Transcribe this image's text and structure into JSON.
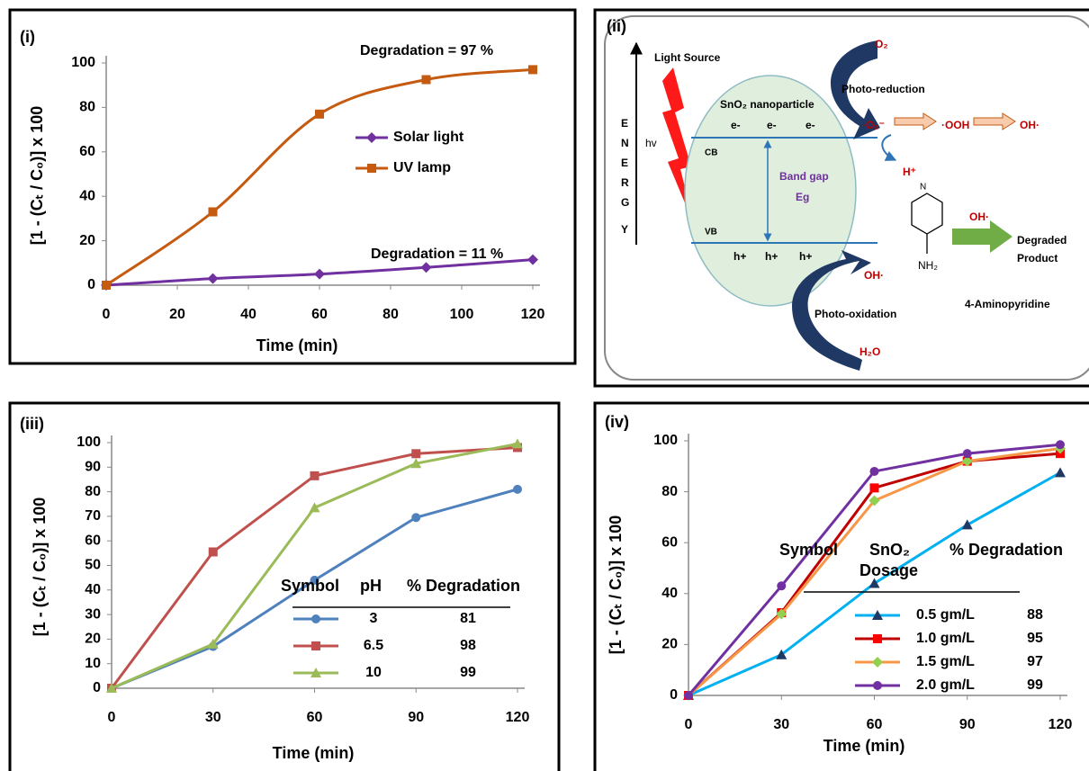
{
  "chart_data": [
    {
      "type": "line",
      "label": "(i)",
      "smooth": true,
      "x_label": "Time (min)",
      "y_label": "[1 - (Cₜ / C₀)] x 100",
      "x": [
        0,
        30,
        60,
        90,
        120
      ],
      "xlim": [
        0,
        120
      ],
      "xticks": [
        0,
        20,
        40,
        60,
        80,
        100,
        120
      ],
      "ylim": [
        0,
        100
      ],
      "yticks": [
        0,
        20,
        40,
        60,
        80,
        100
      ],
      "grid": false,
      "series": [
        {
          "name": "Solar light",
          "color": "#7030a0",
          "marker": "diamond",
          "marker_color": "#7030a0",
          "values": [
            0,
            3,
            5,
            8,
            11.5
          ]
        },
        {
          "name": "UV lamp",
          "color": "#c55a11",
          "marker": "square",
          "marker_color": "#c55a11",
          "values": [
            0,
            33,
            77,
            92.5,
            97
          ]
        }
      ],
      "annotations": [
        "Degradation = 97 %",
        "Degradation = 11 %"
      ]
    },
    {
      "type": "line",
      "label": "(iii)",
      "smooth": false,
      "x_label": "Time (min)",
      "y_label": "[1 - (Cₜ / C₀)] x 100",
      "x": [
        0,
        30,
        60,
        90,
        120
      ],
      "xlim": [
        0,
        120
      ],
      "xticks": [
        0,
        30,
        60,
        90,
        120
      ],
      "ylim": [
        0,
        100
      ],
      "yticks": [
        0,
        10,
        20,
        30,
        40,
        50,
        60,
        70,
        80,
        90,
        100
      ],
      "grid": false,
      "legend_header": [
        "Symbol",
        "pH",
        "% Degradation"
      ],
      "series": [
        {
          "name": "3",
          "degradation": 81,
          "color": "#4f81bd",
          "marker": "circle",
          "marker_color": "#4f81bd",
          "values": [
            0,
            17,
            44,
            69.5,
            81
          ]
        },
        {
          "name": "6.5",
          "degradation": 98,
          "color": "#c0504d",
          "marker": "square",
          "marker_color": "#c0504d",
          "values": [
            0,
            55.5,
            86.5,
            95.5,
            98
          ]
        },
        {
          "name": "10",
          "degradation": 99,
          "color": "#9bbb59",
          "marker": "triangle",
          "marker_color": "#9bbb59",
          "values": [
            0,
            18,
            73.5,
            91.5,
            99.5
          ]
        }
      ]
    },
    {
      "type": "line",
      "label": "(iv)",
      "smooth": false,
      "x_label": "Time (min)",
      "y_label": "[1 - (Cₜ / C₀)] x 100",
      "x": [
        0,
        30,
        60,
        90,
        120
      ],
      "xlim": [
        0,
        120
      ],
      "xticks": [
        0,
        30,
        60,
        90,
        120
      ],
      "ylim": [
        0,
        100
      ],
      "yticks": [
        0,
        20,
        40,
        60,
        80,
        100
      ],
      "grid": false,
      "legend_header": [
        "Symbol",
        "SnO₂",
        "Dosage",
        "% Degradation"
      ],
      "series": [
        {
          "name": "0.5 gm/L",
          "degradation": 88,
          "color": "#00b0f0",
          "marker": "triangle",
          "marker_color": "#1f3864",
          "values": [
            0,
            16,
            44,
            67,
            87.5
          ]
        },
        {
          "name": "1.0 gm/L",
          "degradation": 95,
          "color": "#c00000",
          "marker": "square",
          "marker_color": "#ff0000",
          "values": [
            0,
            32.5,
            81.5,
            92,
            95
          ]
        },
        {
          "name": "1.5 gm/L",
          "degradation": 97,
          "color": "#f79646",
          "marker": "diamond",
          "marker_color": "#92d050",
          "values": [
            0,
            32,
            76.5,
            92,
            97
          ]
        },
        {
          "name": "2.0 gm/L",
          "degradation": 99,
          "color": "#7030a0",
          "marker": "circle",
          "marker_color": "#7030a0",
          "values": [
            0,
            43,
            88,
            95,
            98.5
          ]
        }
      ]
    }
  ],
  "diagram": {
    "label": "(ii)",
    "light_source": "Light Source",
    "energy": [
      "E",
      "N",
      "E",
      "R",
      "G",
      "Y"
    ],
    "hv": "hv",
    "particle": "SnO₂ nanoparticle",
    "electrons": [
      "e-",
      "e-",
      "e-"
    ],
    "cb": "CB",
    "band_gap": "Band gap",
    "eg": "Eg",
    "vb": "VB",
    "holes": [
      "h+",
      "h+",
      "h+"
    ],
    "photo_reduction": "Photo-reduction",
    "o2": "O₂",
    "superoxide": "·O₂⁻",
    "hydroperoxyl": "·OOH",
    "hydroxyl": "OH·",
    "proton": "H⁺",
    "reagent": "OH·",
    "product": [
      "Degraded",
      "Product"
    ],
    "nh2": "NH₂",
    "compound": "4-Aminopyridine",
    "photo_oxidation": "Photo-oxidation",
    "oh": "OH·",
    "h2o": "H₂O"
  }
}
